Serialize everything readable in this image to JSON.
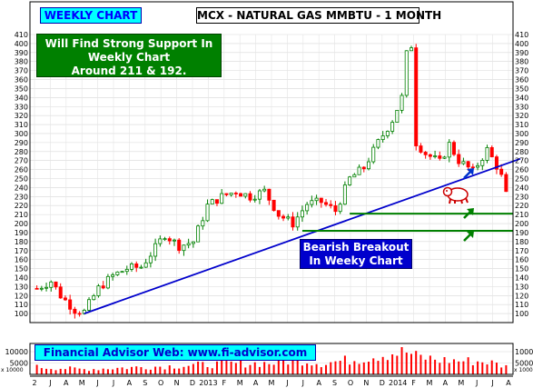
{
  "header": {
    "left_title": "WEEKLY CHART",
    "main_title": "MCX - NATURAL GAS MMBTU - 1 MONTH"
  },
  "annotations": {
    "support_lines": [
      "Will Find Strong Support In",
      "Weekly Chart",
      "Around 211 & 192."
    ],
    "bearish_lines": [
      "Bearish Breakout",
      "In Weeky Chart"
    ],
    "advisor": "Financial Advisor Web: www.fi-advisor.com"
  },
  "colors": {
    "up_candle": "#008000",
    "down_candle": "#ff0000",
    "trendline": "#0000cc",
    "support_line": "#008000",
    "volume_bar": "#ff0000"
  },
  "icons": [
    "bear-icon",
    "arrow-up-right-icon"
  ],
  "chart_data": [
    {
      "type": "candlestick",
      "title": "MCX - NATURAL GAS MMBTU - 1 MONTH",
      "ylim": [
        90,
        410
      ],
      "y_ticks": [
        100,
        110,
        120,
        130,
        140,
        150,
        160,
        170,
        180,
        190,
        200,
        210,
        220,
        230,
        240,
        250,
        260,
        270,
        280,
        290,
        300,
        310,
        320,
        330,
        340,
        350,
        360,
        370,
        380,
        390,
        400,
        410
      ],
      "x_tick_labels": [
        "2",
        "J",
        "A",
        "M",
        "J",
        "J",
        "A",
        "S",
        "O",
        "N",
        "D",
        "2013",
        "F",
        "M",
        "A",
        "M",
        "J",
        "J",
        "A",
        "S",
        "O",
        "N",
        "D",
        "2014",
        "F",
        "M",
        "A",
        "M",
        "J",
        "J",
        "A"
      ],
      "grid": true,
      "legend": "none",
      "close_path": [
        [
          0,
          128
        ],
        [
          3,
          136
        ],
        [
          5,
          120
        ],
        [
          8,
          104
        ],
        [
          10,
          102
        ],
        [
          13,
          128
        ],
        [
          16,
          142
        ],
        [
          19,
          150
        ],
        [
          22,
          152
        ],
        [
          25,
          173
        ],
        [
          27,
          188
        ],
        [
          30,
          175
        ],
        [
          33,
          180
        ],
        [
          36,
          220
        ],
        [
          39,
          230
        ],
        [
          42,
          236
        ],
        [
          45,
          230
        ],
        [
          48,
          236
        ],
        [
          51,
          210
        ],
        [
          54,
          200
        ],
        [
          57,
          222
        ],
        [
          60,
          224
        ],
        [
          63,
          214
        ],
        [
          66,
          250
        ],
        [
          69,
          262
        ],
        [
          72,
          290
        ],
        [
          75,
          315
        ],
        [
          77,
          340
        ],
        [
          78,
          388
        ],
        [
          79,
          398
        ],
        [
          80,
          290
        ],
        [
          82,
          278
        ],
        [
          85,
          268
        ],
        [
          87,
          288
        ],
        [
          89,
          270
        ],
        [
          92,
          258
        ],
        [
          95,
          282
        ],
        [
          97,
          264
        ],
        [
          98,
          252
        ],
        [
          99,
          232
        ]
      ],
      "trendlines": [
        {
          "name": "rising-support",
          "points": [
            [
              10,
              100
            ],
            [
              102,
              272
            ]
          ]
        }
      ],
      "horizontal_levels": [
        211,
        192
      ]
    },
    {
      "type": "bar",
      "title": "",
      "ylim": [
        0,
        12000
      ],
      "y_ticks": [
        5000,
        10000
      ],
      "axis_notes": [
        "x 10000",
        "x 10000"
      ],
      "volume_path": [
        [
          0,
          3600
        ],
        [
          10,
          2500
        ],
        [
          20,
          3400
        ],
        [
          30,
          4200
        ],
        [
          40,
          5200
        ],
        [
          50,
          5600
        ],
        [
          55,
          7400
        ],
        [
          60,
          5400
        ],
        [
          65,
          6800
        ],
        [
          68,
          7600
        ],
        [
          72,
          9500
        ],
        [
          75,
          10500
        ],
        [
          78,
          11000
        ],
        [
          80,
          8800
        ],
        [
          85,
          7000
        ],
        [
          90,
          6600
        ],
        [
          95,
          6200
        ],
        [
          99,
          3800
        ]
      ]
    }
  ]
}
